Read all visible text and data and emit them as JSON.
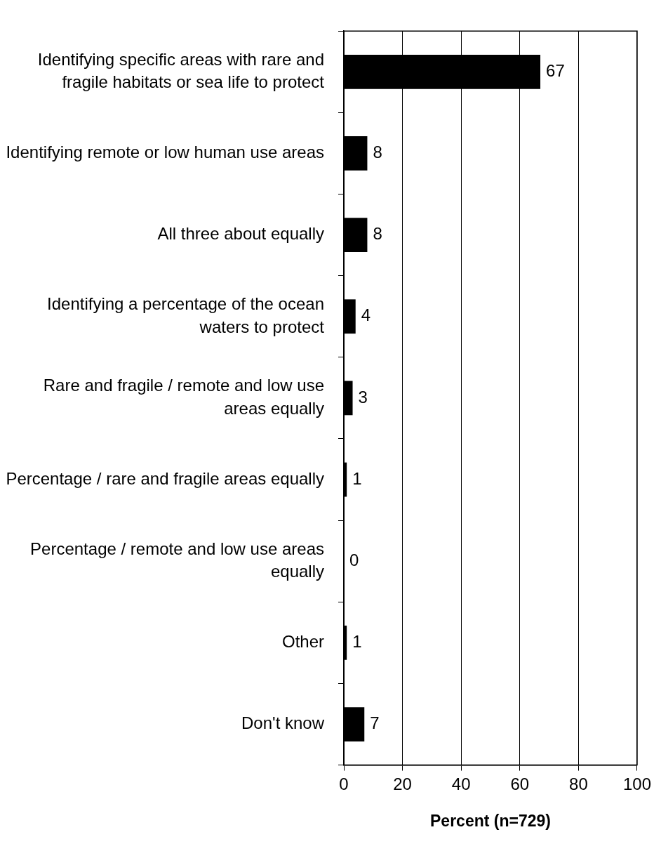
{
  "chart_data": {
    "type": "bar",
    "orientation": "horizontal",
    "categories": [
      "Identifying specific areas with rare and fragile habitats or sea life to protect",
      "Identifying remote or low human use areas",
      "All three about equally",
      "Identifying a percentage of the ocean waters to protect",
      "Rare and fragile / remote and low use areas equally",
      "Percentage / rare and fragile areas equally",
      "Percentage / remote and low use areas equally",
      "Other",
      "Don't know"
    ],
    "values": [
      67,
      8,
      8,
      4,
      3,
      1,
      0,
      1,
      7
    ],
    "color": "#000000",
    "xlim": [
      0,
      100
    ],
    "xticks": [
      0,
      20,
      40,
      60,
      80,
      100
    ],
    "xlabel": "Percent (n=729)",
    "grid": "x",
    "data_labels": true,
    "legend": false
  }
}
